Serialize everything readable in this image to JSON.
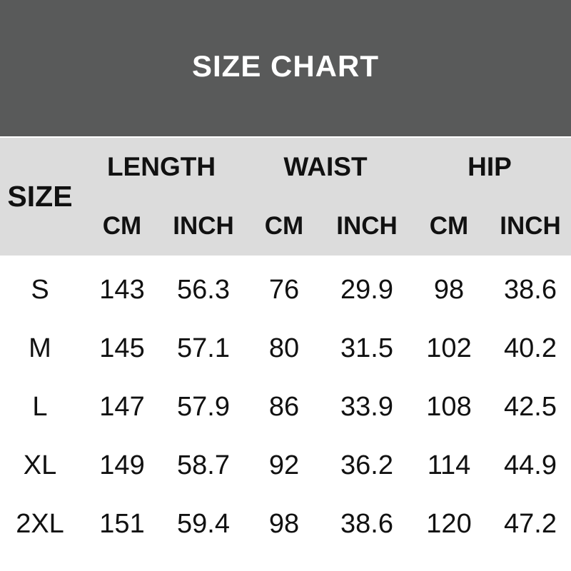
{
  "title": "SIZE CHART",
  "colors": {
    "banner_bg": "#595a5a",
    "header_bg": "#dcdcdc",
    "title_text": "#ffffff",
    "body_text": "#111111"
  },
  "table": {
    "size_label": "SIZE",
    "group_labels": [
      "LENGTH",
      "WAIST",
      "HIP"
    ],
    "unit_headers": [
      "CM",
      "INCH",
      "CM",
      "INCH",
      "CM",
      "INCH"
    ],
    "rows": [
      {
        "size": "S",
        "values": [
          "143",
          "56.3",
          "76",
          "29.9",
          "98",
          "38.6"
        ]
      },
      {
        "size": "M",
        "values": [
          "145",
          "57.1",
          "80",
          "31.5",
          "102",
          "40.2"
        ]
      },
      {
        "size": "L",
        "values": [
          "147",
          "57.9",
          "86",
          "33.9",
          "108",
          "42.5"
        ]
      },
      {
        "size": "XL",
        "values": [
          "149",
          "58.7",
          "92",
          "36.2",
          "114",
          "44.9"
        ]
      },
      {
        "size": "2XL",
        "values": [
          "151",
          "59.4",
          "98",
          "38.6",
          "120",
          "47.2"
        ]
      }
    ]
  },
  "chart_data": {
    "type": "table",
    "title": "SIZE CHART",
    "columns": [
      "SIZE",
      "LENGTH CM",
      "LENGTH INCH",
      "WAIST CM",
      "WAIST INCH",
      "HIP CM",
      "HIP INCH"
    ],
    "rows": [
      [
        "S",
        143,
        56.3,
        76,
        29.9,
        98,
        38.6
      ],
      [
        "M",
        145,
        57.1,
        80,
        31.5,
        102,
        40.2
      ],
      [
        "L",
        147,
        57.9,
        86,
        33.9,
        108,
        42.5
      ],
      [
        "XL",
        149,
        58.7,
        92,
        36.2,
        114,
        44.9
      ],
      [
        "2XL",
        151,
        59.4,
        98,
        38.6,
        120,
        47.2
      ]
    ]
  }
}
